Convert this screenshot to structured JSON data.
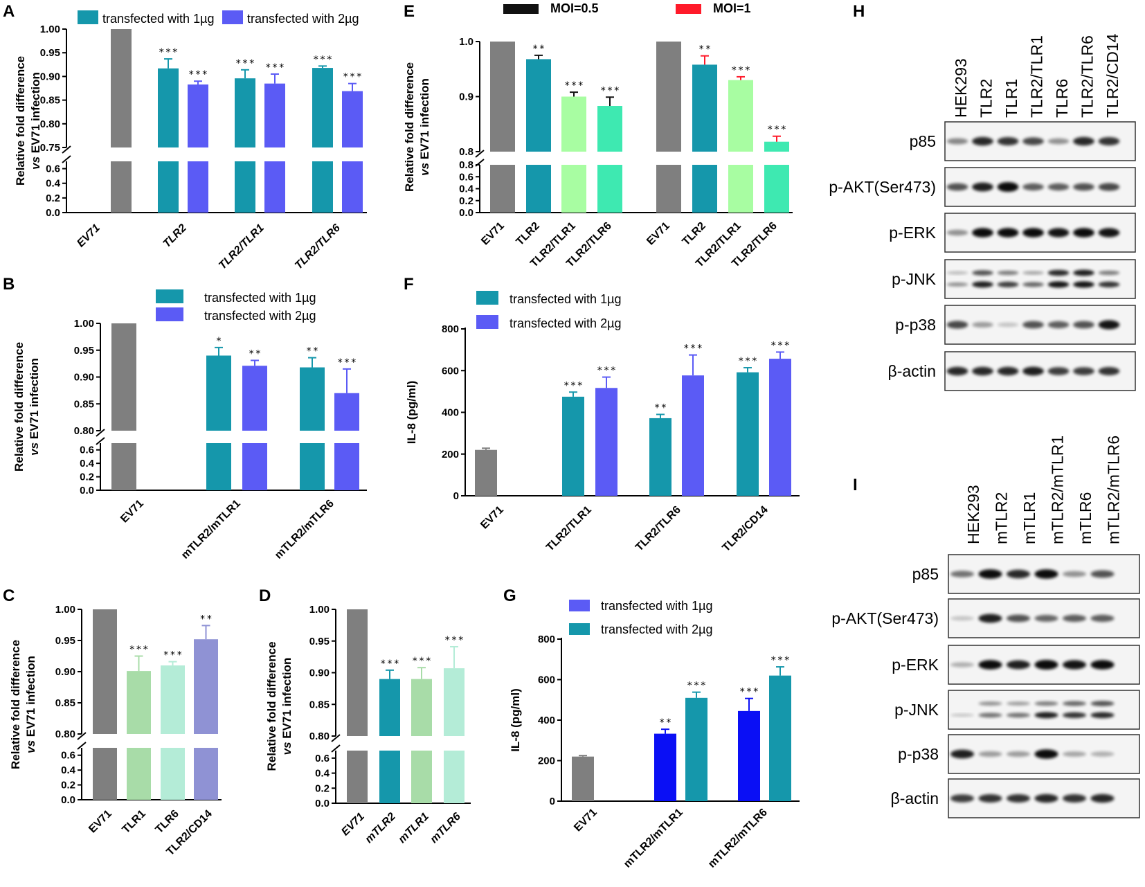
{
  "colors": {
    "teal": "#1597ab",
    "blue": "#5b5bf5",
    "gray": "#7f7f7f",
    "lightgreen": "#a8dca8",
    "mint": "#b4ecd7",
    "lavender": "#8f92d4",
    "palegreen": "#a8fda2",
    "aqua": "#3ee9b1",
    "royal": "#0a0ff5",
    "black": "#111111",
    "red": "#ff1a2a"
  },
  "chart_data": [
    {
      "panel": "A",
      "type": "bar",
      "ylabel_line1": "Relative fold difference",
      "ylabel_line2": "vs EV71 infection",
      "legend": [
        "transfected with 1µg",
        "transfected with 2µg"
      ],
      "categories": [
        "EV71",
        "TLR2",
        "TLR2/TLR1",
        "TLR2/TLR6"
      ],
      "series": [
        {
          "name": "transfected with 1µg",
          "values": [
            1.0,
            0.917,
            0.896,
            0.918
          ],
          "errors": [
            0,
            0.02,
            0.018,
            0.004
          ],
          "sig": [
            "",
            "***",
            "***",
            "***"
          ]
        },
        {
          "name": "transfected with 2µg",
          "values": [
            null,
            0.883,
            0.885,
            0.869
          ],
          "errors": [
            0,
            0.007,
            0.02,
            0.016
          ],
          "sig": [
            "",
            "***",
            "***",
            "***"
          ]
        }
      ],
      "yticks_upper": [
        "1.00",
        "0.95",
        "0.90",
        "0.85",
        "0.80",
        "0.75"
      ],
      "yticks_lower": [
        "0.6",
        "0.4",
        "0.2",
        "0.0"
      ],
      "ylim_upper": [
        0.75,
        1.0
      ],
      "ylim_lower": [
        0,
        0.7
      ]
    },
    {
      "panel": "B",
      "type": "bar",
      "ylabel_line1": "Relative fold difference",
      "ylabel_line2": "vs EV71 infection",
      "legend": [
        "transfected with 1µg",
        "transfected with 2µg"
      ],
      "categories": [
        "EV71",
        "mTLR2/mTLR1",
        "mTLR2/mTLR6"
      ],
      "series": [
        {
          "name": "transfected with 1µg",
          "values": [
            1.0,
            0.94,
            0.918
          ],
          "errors": [
            0,
            0.015,
            0.018
          ],
          "sig": [
            "",
            "*",
            "**"
          ]
        },
        {
          "name": "transfected with 2µg",
          "values": [
            null,
            0.921,
            0.87
          ],
          "errors": [
            0,
            0.01,
            0.045
          ],
          "sig": [
            "",
            "**",
            "***"
          ]
        }
      ],
      "yticks_upper": [
        "1.00",
        "0.95",
        "0.90",
        "0.85",
        "0.80"
      ],
      "yticks_lower": [
        "0.6",
        "0.4",
        "0.2",
        "0.0"
      ],
      "ylim_upper": [
        0.8,
        1.0
      ],
      "ylim_lower": [
        0,
        0.7
      ]
    },
    {
      "panel": "C",
      "type": "bar",
      "ylabel_line1": "Relative fold difference",
      "ylabel_line2": "vs EV71 infection",
      "categories": [
        "EV71",
        "TLR1",
        "TLR6",
        "TLR2/CD14"
      ],
      "values": [
        1.0,
        0.901,
        0.91,
        0.952
      ],
      "errors": [
        0,
        0.024,
        0.006,
        0.022
      ],
      "sig": [
        "",
        "***",
        "***",
        "**"
      ],
      "yticks_upper": [
        "1.00",
        "0.95",
        "0.90",
        "0.85",
        "0.80"
      ],
      "yticks_lower": [
        "0.6",
        "0.4",
        "0.2",
        "0.0"
      ],
      "ylim_upper": [
        0.8,
        1.0
      ],
      "ylim_lower": [
        0,
        0.7
      ]
    },
    {
      "panel": "D",
      "type": "bar",
      "ylabel_line1": "Relative fold difference",
      "ylabel_line2": "vs EV71 infection",
      "categories": [
        "EV71",
        "mTLR2",
        "mTLR1",
        "mTLR6"
      ],
      "values": [
        1.0,
        0.89,
        0.89,
        0.907
      ],
      "errors": [
        0,
        0.014,
        0.018,
        0.034
      ],
      "sig": [
        "",
        "***",
        "***",
        "***"
      ],
      "yticks_upper": [
        "1.00",
        "0.95",
        "0.90",
        "0.85",
        "0.80"
      ],
      "yticks_lower": [
        "0.6",
        "0.4",
        "0.2",
        "0.0"
      ],
      "ylim_upper": [
        0.8,
        1.0
      ],
      "ylim_lower": [
        0,
        0.7
      ]
    },
    {
      "panel": "E",
      "type": "bar",
      "ylabel_line1": "Relative fold difference",
      "ylabel_line2": "vs EV71 infection",
      "legend": [
        "MOI=0.5",
        "MOI=1"
      ],
      "categories": [
        "EV71",
        "TLR2",
        "TLR2/TLR1",
        "TLR2/TLR6",
        "EV71",
        "TLR2",
        "TLR2/TLR1",
        "TLR2/TLR6"
      ],
      "groups": [
        {
          "name": "MOI=0.5",
          "values": [
            1.0,
            0.968,
            0.9,
            0.883
          ],
          "errors": [
            0,
            0.007,
            0.008,
            0.016
          ],
          "sig": [
            "",
            "**",
            "***",
            "***"
          ]
        },
        {
          "name": "MOI=1",
          "values": [
            1.0,
            0.958,
            0.93,
            0.818
          ],
          "errors": [
            0,
            0.016,
            0.006,
            0.01
          ],
          "sig": [
            "",
            "**",
            "***",
            "***"
          ]
        }
      ],
      "yticks_upper": [
        "1.0",
        "0.9",
        "0.8"
      ],
      "yticks_lower": [
        "0.8",
        "0.6",
        "0.4",
        "0.2",
        "0.0"
      ],
      "ylim_upper": [
        0.8,
        1.0
      ],
      "ylim_lower": [
        0,
        0.8
      ]
    },
    {
      "panel": "F",
      "type": "bar",
      "ylabel": "IL-8  (pg/ml)",
      "legend": [
        "transfected with 1µg",
        "transfected with 2µg"
      ],
      "categories": [
        "EV71",
        "TLR2/TLR1",
        "TLR2/TLR6",
        "TLR2/CD14"
      ],
      "series": [
        {
          "name": "transfected with 1µg",
          "values": [
            220,
            475,
            372,
            592
          ],
          "errors": [
            8,
            22,
            18,
            22
          ],
          "sig": [
            "",
            "***",
            "**",
            "***"
          ]
        },
        {
          "name": "transfected with 2µg",
          "values": [
            null,
            517,
            577,
            657
          ],
          "errors": [
            0,
            52,
            98,
            32
          ],
          "sig": [
            "",
            "***",
            "***",
            "***"
          ]
        }
      ],
      "yticks": [
        "800",
        "600",
        "400",
        "200",
        "0"
      ],
      "ylim": [
        0,
        800
      ]
    },
    {
      "panel": "G",
      "type": "bar",
      "ylabel": "IL-8  (pg/ml)",
      "legend": [
        "transfected with 1µg",
        "transfected with 2µg"
      ],
      "categories": [
        "EV71",
        "mTLR2/mTLR1",
        "mTLR2/mTLR6"
      ],
      "series": [
        {
          "name": "transfected with 1µg",
          "values": [
            220,
            333,
            445
          ],
          "errors": [
            5,
            22,
            62
          ],
          "sig": [
            "",
            "**",
            "***"
          ]
        },
        {
          "name": "transfected with 2µg",
          "values": [
            null,
            510,
            620
          ],
          "errors": [
            0,
            28,
            43
          ],
          "sig": [
            "",
            "***",
            "***"
          ]
        }
      ],
      "yticks": [
        "800",
        "600",
        "400",
        "200",
        "0"
      ],
      "ylim": [
        0,
        800
      ]
    }
  ],
  "blots": {
    "H": {
      "letter": "H",
      "lanes": [
        "HEK293",
        "TLR2",
        "TLR1",
        "TLR2/TLR1",
        "TLR6",
        "TLR2/TLR6",
        "TLR2/CD14"
      ],
      "rows": [
        "p85",
        "p-AKT(Ser473)",
        "p-ERK",
        "p-JNK",
        "p-p38",
        "β-actin"
      ]
    },
    "I": {
      "letter": "I",
      "lanes": [
        "HEK293",
        "mTLR2",
        "mTLR1",
        "mTLR2/mTLR1",
        "mTLR6",
        "mTLR2/mTLR6"
      ],
      "rows": [
        "p85",
        "p-AKT(Ser473)",
        "p-ERK",
        "p-JNK",
        "p-p38",
        "β-actin"
      ]
    }
  }
}
